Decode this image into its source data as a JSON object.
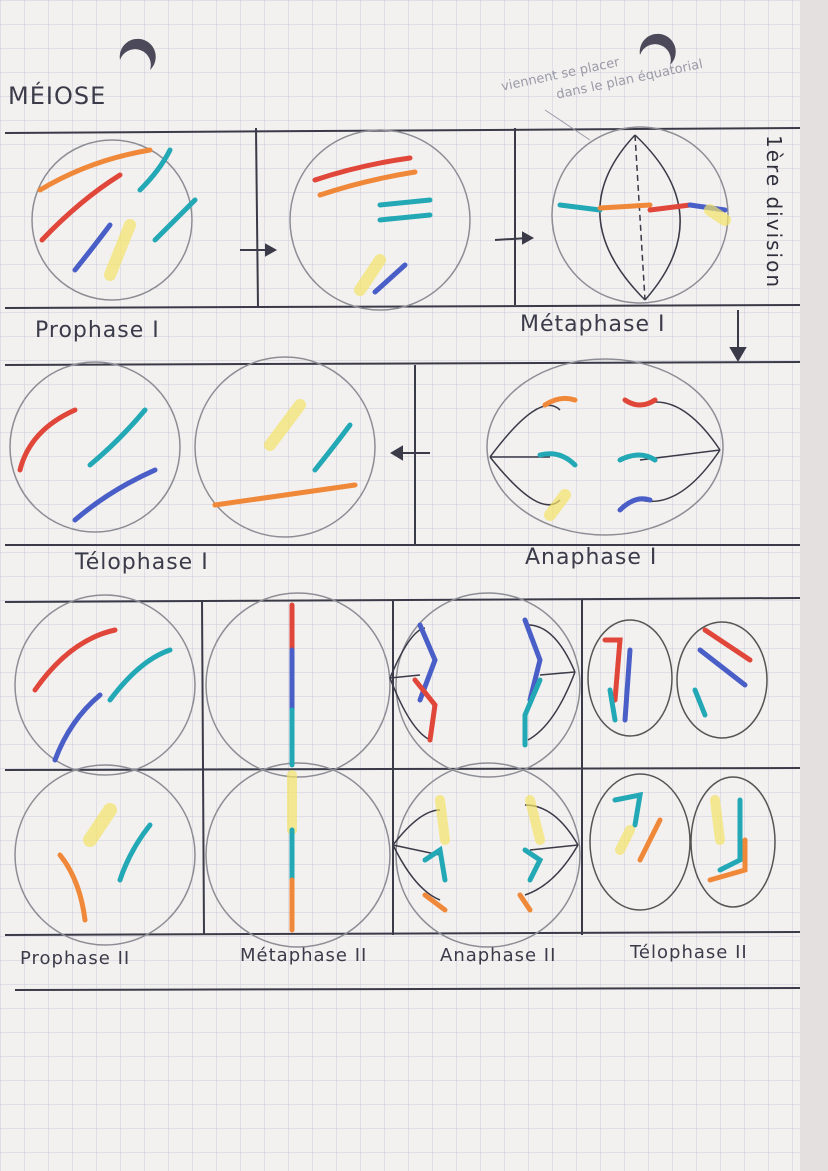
{
  "title": "MÉIOSE",
  "annotation": {
    "line1": "viennent se placer",
    "line2": "dans le plan équatorial"
  },
  "side_label": "1ère division",
  "phases": {
    "prophase1": "Prophase I",
    "metaphase1": "Métaphase I",
    "telophase1": "Télophase I",
    "anaphase1": "Anaphase I",
    "prophase2": "Prophase II",
    "metaphase2": "Métaphase II",
    "anaphase2": "Anaphase II",
    "telophase2": "Télophase II"
  },
  "colors": {
    "red": "#e0473a",
    "orange": "#f0883a",
    "teal": "#23a8b5",
    "blue": "#4a5ec8",
    "yellow": "#f3e36a",
    "ink": "#3a3a48",
    "grid": "#c9cbd8",
    "paper": "#f3f1ef"
  }
}
